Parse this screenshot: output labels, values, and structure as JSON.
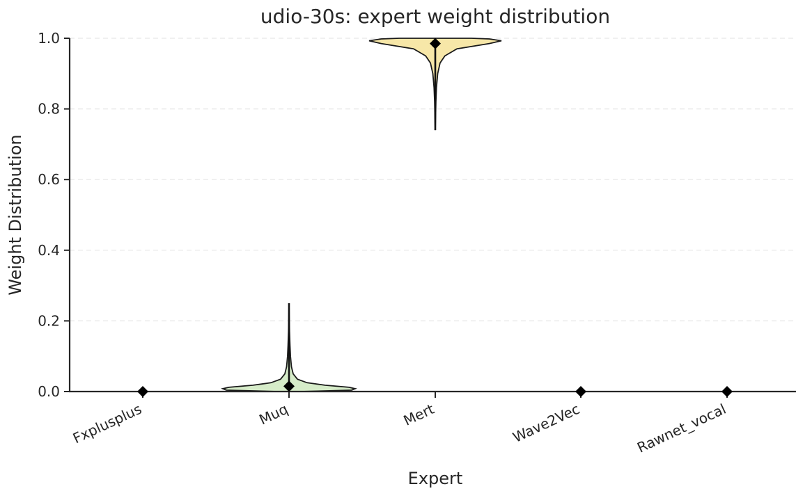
{
  "chart_data": {
    "type": "violin",
    "title": "udio-30s: expert weight distribution",
    "xlabel": "Expert",
    "ylabel": "Weight Distribution",
    "ylim": [
      0,
      1.0
    ],
    "yticks": [
      "0.0",
      "0.2",
      "0.4",
      "0.6",
      "0.8",
      "1.0"
    ],
    "grid": "horizontal dashed",
    "categories": [
      "Fxplusplus",
      "Muq",
      "Mert",
      "Wave2Vec",
      "Rawnet_vocal"
    ],
    "series": [
      {
        "category": "Fxplusplus",
        "color": "#f4c9c9",
        "min": 0.0,
        "max": 0.0,
        "mean": 0.0,
        "shape": [
          [
            0.0,
            0.0
          ]
        ]
      },
      {
        "category": "Muq",
        "color": "#d6ecc9",
        "min": 0.0,
        "max": 0.25,
        "mean": 0.015,
        "shape": [
          [
            0.0,
            0.1
          ],
          [
            0.004,
            0.52
          ],
          [
            0.008,
            0.55
          ],
          [
            0.012,
            0.5
          ],
          [
            0.018,
            0.3
          ],
          [
            0.025,
            0.15
          ],
          [
            0.035,
            0.07
          ],
          [
            0.05,
            0.035
          ],
          [
            0.07,
            0.02
          ],
          [
            0.1,
            0.012
          ],
          [
            0.13,
            0.008
          ],
          [
            0.17,
            0.004
          ],
          [
            0.21,
            0.002
          ],
          [
            0.25,
            0.0
          ]
        ]
      },
      {
        "category": "Mert",
        "color": "#f7e7a8",
        "min": 0.74,
        "max": 1.0,
        "mean": 0.985,
        "shape": [
          [
            0.74,
            0.0
          ],
          [
            0.78,
            0.003
          ],
          [
            0.82,
            0.005
          ],
          [
            0.86,
            0.01
          ],
          [
            0.9,
            0.02
          ],
          [
            0.93,
            0.04
          ],
          [
            0.95,
            0.08
          ],
          [
            0.97,
            0.18
          ],
          [
            0.985,
            0.45
          ],
          [
            0.993,
            0.55
          ],
          [
            0.998,
            0.45
          ],
          [
            1.0,
            0.3
          ]
        ]
      },
      {
        "category": "Wave2Vec",
        "color": "#c9dcf0",
        "min": 0.0,
        "max": 0.0,
        "mean": 0.0,
        "shape": [
          [
            0.0,
            0.0
          ]
        ]
      },
      {
        "category": "Rawnet_vocal",
        "color": "#e3d3ef",
        "min": 0.0,
        "max": 0.0,
        "mean": 0.0,
        "shape": [
          [
            0.0,
            0.0
          ]
        ]
      }
    ]
  }
}
